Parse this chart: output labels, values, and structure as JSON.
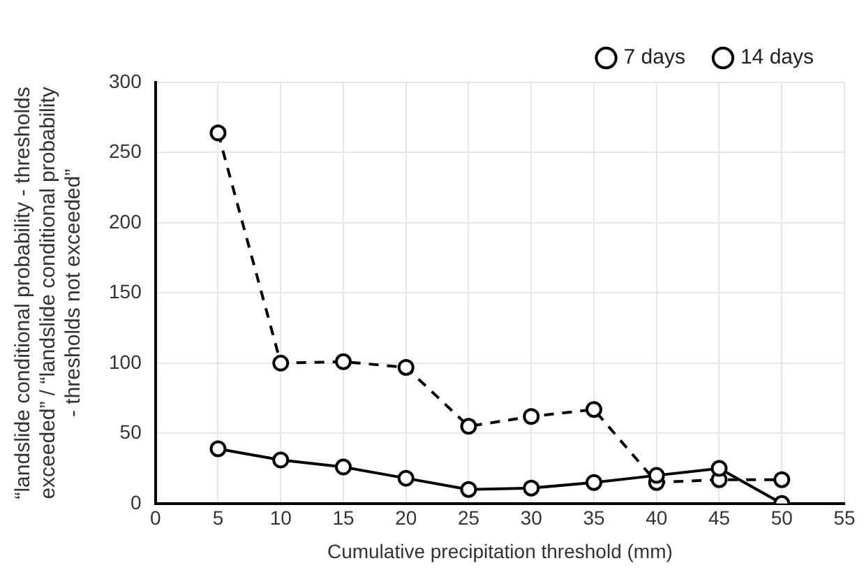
{
  "chart_data": {
    "type": "line",
    "xlabel": "Cumulative precipitation threshold (mm)",
    "ylabel": "“landslide conditional probability - thresholds exceeded” / “landslide conditional probability - thresholds not exceeded”",
    "x": [
      5,
      10,
      15,
      20,
      25,
      30,
      35,
      40,
      45,
      50
    ],
    "series": [
      {
        "name": "7 days",
        "color": "#000000",
        "line_style": "solid",
        "values": [
          39,
          31,
          26,
          18,
          10,
          11,
          15,
          20,
          25,
          0
        ]
      },
      {
        "name": "14 days",
        "color": "#000000",
        "line_style": "dashed",
        "values": [
          264,
          100,
          101,
          97,
          55,
          62,
          67,
          15,
          17,
          17
        ]
      }
    ],
    "xlim": [
      0,
      55
    ],
    "xticks": [
      0,
      5,
      10,
      15,
      20,
      25,
      30,
      35,
      40,
      45,
      50,
      55
    ],
    "ylim": [
      0,
      300
    ],
    "yticks": [
      0,
      50,
      100,
      150,
      200,
      250,
      300
    ],
    "grid": true,
    "legend": "top right",
    "marker": "circle"
  }
}
